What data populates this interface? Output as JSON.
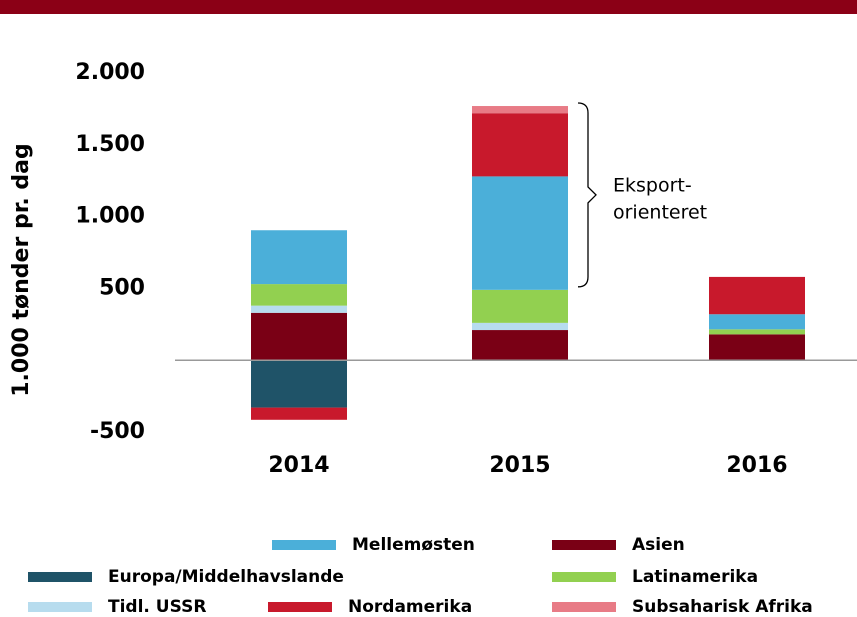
{
  "chart_data": {
    "type": "stacked_bar",
    "y_label": "1.000 tønder pr. dag",
    "categories": [
      "2014",
      "2015",
      "2016"
    ],
    "series": [
      {
        "name": "Asien",
        "color": "#7a0015",
        "values": [
          330,
          210,
          180
        ]
      },
      {
        "name": "Europa/Middelhavslande",
        "color": "#1f5368",
        "values": [
          -330,
          0,
          0
        ]
      },
      {
        "name": "Tidl. USSR",
        "color": "#b7dcee",
        "values": [
          50,
          50,
          0
        ]
      },
      {
        "name": "Latinamerika",
        "color": "#92d050",
        "values": [
          150,
          230,
          35
        ]
      },
      {
        "name": "Mellemøsten",
        "color": "#4bafd9",
        "values": [
          375,
          790,
          105
        ]
      },
      {
        "name": "Nordamerika",
        "color": "#c8192c",
        "values": [
          -85,
          440,
          260
        ]
      },
      {
        "name": "Subsaharisk Afrika",
        "color": "#e87b86",
        "values": [
          0,
          50,
          0
        ]
      }
    ],
    "annotation": [
      "Eksport-",
      "orienteret"
    ],
    "ylim": [
      -500,
      2000
    ],
    "yticks": [
      {
        "value": 2000,
        "label": "2.000"
      },
      {
        "value": 1500,
        "label": "1.500"
      },
      {
        "value": 1000,
        "label": "1.000"
      },
      500,
      -500
    ]
  }
}
